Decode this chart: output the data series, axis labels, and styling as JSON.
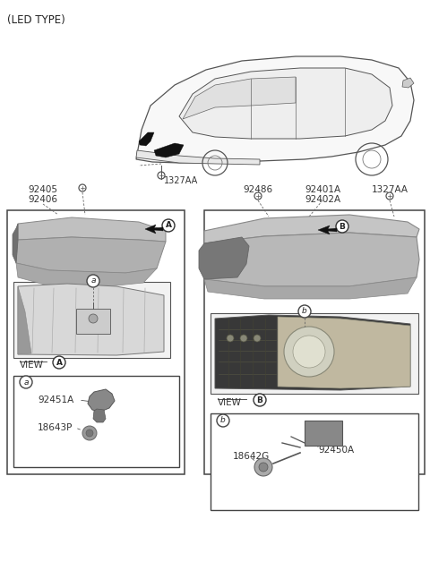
{
  "title": "(LED TYPE)",
  "bg_color": "#ffffff",
  "text_color": "#333333",
  "car_body_color": "#f0f0f0",
  "lamp_gray": "#c8c8c8",
  "lamp_dark": "#555555",
  "lamp_mid": "#909090",
  "parts": {
    "part_numbers_left_top": [
      "92405",
      "92406"
    ],
    "part_number_bolt_left": "1327AA",
    "part_numbers_right_top": [
      "92401A",
      "92402A"
    ],
    "part_number_right_2": "92486",
    "part_number_bolt_right": "1327AA",
    "left_sub_parts": [
      "92451A",
      "18643P"
    ],
    "right_sub_parts": [
      "18642G",
      "92450A"
    ],
    "view_left": "VIEW",
    "view_right": "VIEW",
    "sub_box_left": "a",
    "sub_box_right": "b",
    "circle_left": "A",
    "circle_right": "B"
  },
  "layout": {
    "fig_w": 4.8,
    "fig_h": 6.56,
    "dpi": 100
  }
}
